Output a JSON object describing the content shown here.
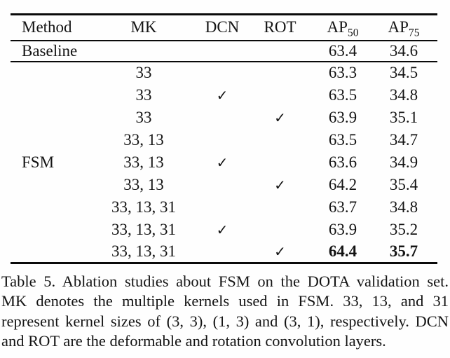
{
  "table": {
    "header": {
      "method": "Method",
      "mk": "MK",
      "dcn": "DCN",
      "rot": "ROT",
      "ap50": {
        "base": "AP",
        "sub": "50"
      },
      "ap75": {
        "base": "AP",
        "sub": "75"
      }
    },
    "baseline": {
      "method": "Baseline",
      "mk": "",
      "dcn": "",
      "rot": "",
      "ap50": "63.4",
      "ap75": "34.6"
    },
    "fsm": {
      "label": "FSM",
      "rows": [
        {
          "mk": "33",
          "dcn": "",
          "rot": "",
          "ap50": "63.3",
          "ap75": "34.5"
        },
        {
          "mk": "33",
          "dcn": "✓",
          "rot": "",
          "ap50": "63.5",
          "ap75": "34.8"
        },
        {
          "mk": "33",
          "dcn": "",
          "rot": "✓",
          "ap50": "63.9",
          "ap75": "35.1"
        },
        {
          "mk": "33, 13",
          "dcn": "",
          "rot": "",
          "ap50": "63.5",
          "ap75": "34.7"
        },
        {
          "mk": "33, 13",
          "dcn": "✓",
          "rot": "",
          "ap50": "63.6",
          "ap75": "34.9"
        },
        {
          "mk": "33, 13",
          "dcn": "",
          "rot": "✓",
          "ap50": "64.2",
          "ap75": "35.4"
        },
        {
          "mk": "33, 13, 31",
          "dcn": "",
          "rot": "",
          "ap50": "63.7",
          "ap75": "34.8"
        },
        {
          "mk": "33, 13, 31",
          "dcn": "✓",
          "rot": "",
          "ap50": "63.9",
          "ap75": "35.2"
        },
        {
          "mk": "33, 13, 31",
          "dcn": "",
          "rot": "✓",
          "ap50": "64.4",
          "ap75": "35.7"
        }
      ]
    }
  },
  "caption": {
    "lines": [
      "Table 5. Ablation studies about FSM on the DOTA validation set.",
      "MK denotes the multiple kernels used in FSM. 33, 13, and 31",
      "represent kernel sizes of (3, 3), (1, 3) and (3, 1), respectively. DCN",
      "and ROT are the deformable and rotation convolution layers."
    ]
  },
  "colors": {
    "text": "#141414",
    "rule": "#0a0a0a",
    "background": "#fefefe"
  }
}
